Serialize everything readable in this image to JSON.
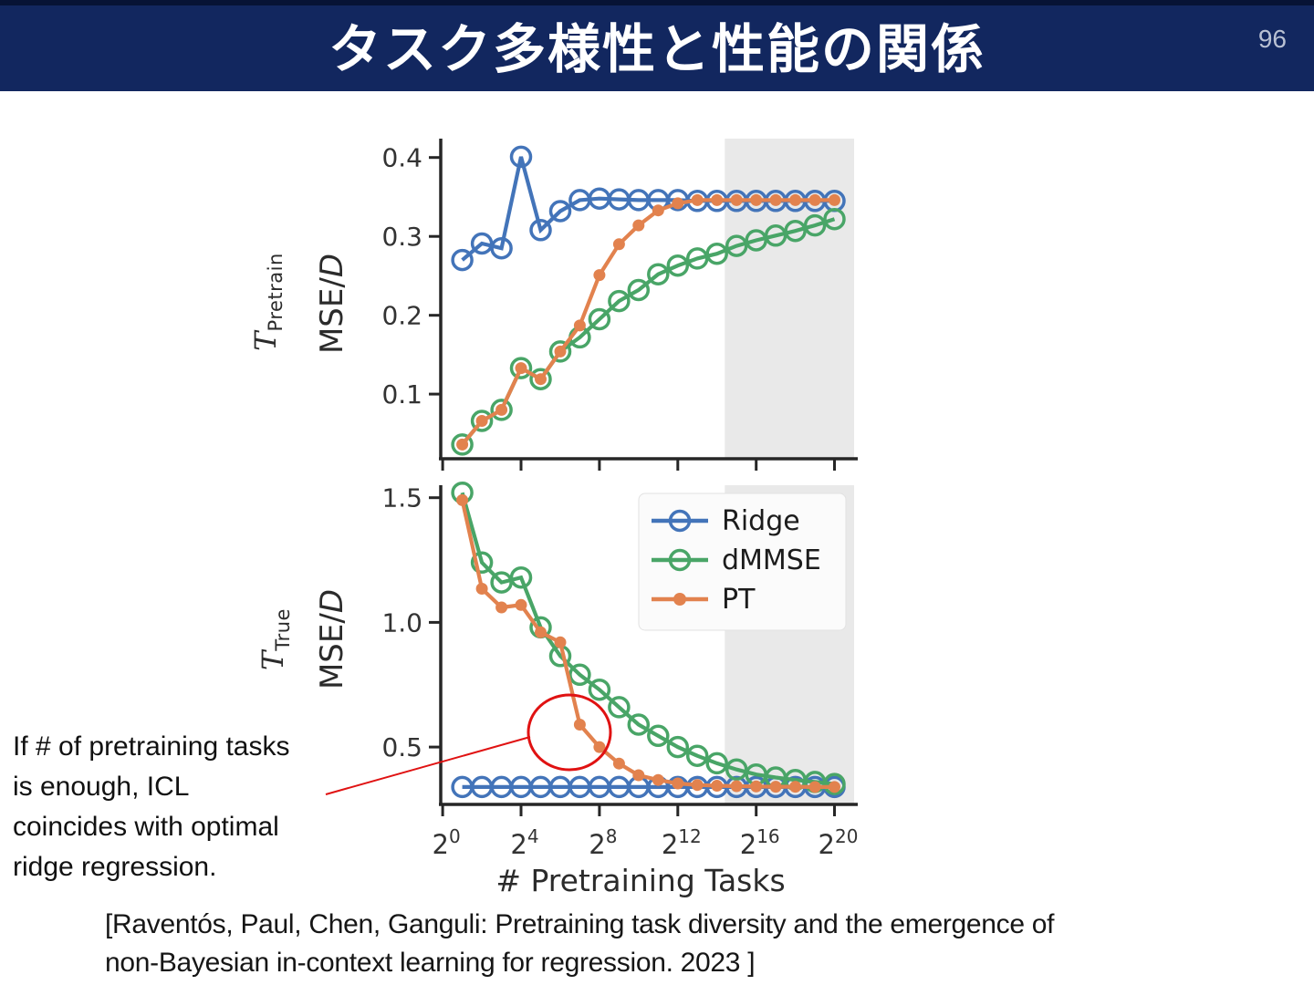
{
  "header": {
    "title": "タスク多様性と性能の関係",
    "page_number": "96"
  },
  "figure": {
    "ylabel": "MSE/D",
    "xlabel": "# Pretraining Tasks"
  },
  "chart_data": [
    {
      "type": "line",
      "row_label_symbol": "T",
      "row_label_sub": "Pretrain",
      "ylabel": "MSE/D",
      "x_powers": [
        1,
        2,
        3,
        4,
        5,
        6,
        7,
        8,
        9,
        10,
        11,
        12,
        13,
        14,
        15,
        16,
        17,
        18,
        19,
        20
      ],
      "x_axis_note": "x values are 2^power, log2 axis",
      "xlim_powers": [
        -0.1,
        21
      ],
      "xticks_powers": [
        0,
        4,
        8,
        12,
        16,
        20
      ],
      "yticks": [
        0.1,
        0.2,
        0.3,
        0.4
      ],
      "ylim": [
        0.018,
        0.424
      ],
      "shaded_region_powers": [
        14.4,
        21
      ],
      "grid": false,
      "series": [
        {
          "name": "Ridge",
          "color": "#4374b9",
          "marker": "open-circle",
          "values": [
            0.27,
            0.291,
            0.285,
            0.401,
            0.308,
            0.332,
            0.346,
            0.348,
            0.347,
            0.346,
            0.346,
            0.346,
            0.345,
            0.345,
            0.345,
            0.345,
            0.345,
            0.345,
            0.345,
            0.345
          ]
        },
        {
          "name": "dMMSE",
          "color": "#49a567",
          "marker": "open-circle",
          "values": [
            0.036,
            0.066,
            0.08,
            0.133,
            0.119,
            0.154,
            0.172,
            0.195,
            0.218,
            0.232,
            0.252,
            0.263,
            0.272,
            0.278,
            0.288,
            0.295,
            0.301,
            0.307,
            0.314,
            0.322
          ]
        },
        {
          "name": "PT",
          "color": "#e2824e",
          "marker": "filled-circle",
          "values": [
            0.036,
            0.066,
            0.08,
            0.133,
            0.119,
            0.154,
            0.187,
            0.251,
            0.29,
            0.314,
            0.333,
            0.342,
            0.346,
            0.346,
            0.346,
            0.346,
            0.346,
            0.346,
            0.346,
            0.346
          ]
        }
      ]
    },
    {
      "type": "line",
      "row_label_symbol": "T",
      "row_label_sub": "True",
      "ylabel": "MSE/D",
      "xlabel": "# Pretraining Tasks",
      "x_powers": [
        1,
        2,
        3,
        4,
        5,
        6,
        7,
        8,
        9,
        10,
        11,
        12,
        13,
        14,
        15,
        16,
        17,
        18,
        19,
        20
      ],
      "x_axis_note": "x values are 2^power, log2 axis",
      "xlim_powers": [
        -0.1,
        21
      ],
      "xticks_powers": [
        0,
        4,
        8,
        12,
        16,
        20
      ],
      "yticks": [
        0.5,
        1.0,
        1.5
      ],
      "ylim": [
        0.27,
        1.55
      ],
      "shaded_region_powers": [
        14.4,
        21
      ],
      "grid": false,
      "legend": {
        "position": "upper right",
        "entries": [
          "Ridge",
          "dMMSE",
          "PT"
        ]
      },
      "series": [
        {
          "name": "Ridge",
          "color": "#4374b9",
          "marker": "open-circle",
          "values": [
            0.34,
            0.34,
            0.34,
            0.34,
            0.34,
            0.34,
            0.34,
            0.34,
            0.34,
            0.34,
            0.34,
            0.34,
            0.34,
            0.34,
            0.34,
            0.34,
            0.34,
            0.34,
            0.34,
            0.34
          ]
        },
        {
          "name": "dMMSE",
          "color": "#49a567",
          "marker": "open-circle",
          "values": [
            1.52,
            1.24,
            1.16,
            1.18,
            0.98,
            0.865,
            0.79,
            0.73,
            0.66,
            0.59,
            0.545,
            0.5,
            0.465,
            0.435,
            0.41,
            0.39,
            0.378,
            0.368,
            0.36,
            0.352
          ]
        },
        {
          "name": "PT",
          "color": "#e2824e",
          "marker": "filled-circle",
          "values": [
            1.49,
            1.135,
            1.06,
            1.07,
            0.96,
            0.92,
            0.59,
            0.5,
            0.434,
            0.387,
            0.368,
            0.354,
            0.348,
            0.345,
            0.343,
            0.342,
            0.341,
            0.341,
            0.34,
            0.34
          ]
        }
      ]
    }
  ],
  "annotation": {
    "text": "If # of pretraining tasks\nis enough, ICL\ncoincides with optimal\nridge regression.",
    "color": "#e01212"
  },
  "citation": {
    "text": "[Raventós, Paul, Chen, Ganguli: Pretraining task diversity and the emergence of\nnon-Bayesian in-context learning for regression. 2023 ]"
  },
  "colors": {
    "header_bg": "#12275f",
    "header_top_strip": "#071335",
    "accent_blue": "#4374b9",
    "accent_green": "#49a567",
    "accent_orange": "#e2824e",
    "shaded_band": "#e9e9e9",
    "axis": "#262626",
    "highlight_red": "#e01212"
  }
}
